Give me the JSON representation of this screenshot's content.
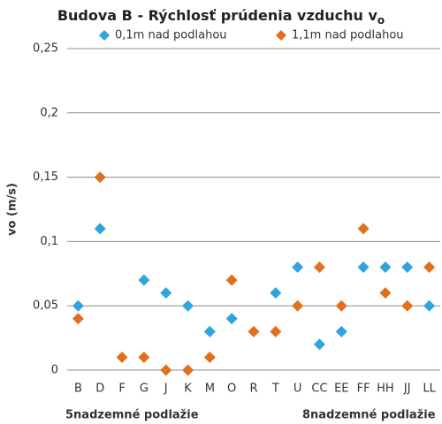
{
  "chart_data": {
    "type": "scatter",
    "title": "Budova B - Rýchlosť prúdenia vzduchu v",
    "title_subscript": "o",
    "y_label": "vo (m/s)",
    "group_labels": [
      "5nadzemné podlažie",
      "8nadzemné podlažie"
    ],
    "categories": [
      "B",
      "D",
      "F",
      "G",
      "J",
      "K",
      "M",
      "O",
      "R",
      "T",
      "U",
      "CC",
      "EE",
      "FF",
      "HH",
      "JJ",
      "LL"
    ],
    "series": [
      {
        "name": "0,1m nad podlahou",
        "color": "#2ea6dd",
        "values": [
          0.05,
          0.11,
          null,
          0.07,
          0.06,
          0.05,
          0.03,
          0.04,
          null,
          0.06,
          0.08,
          0.02,
          0.03,
          0.08,
          0.08,
          0.08,
          0.05
        ]
      },
      {
        "name": "1,1m  nad podlahou",
        "color": "#e0701e",
        "values": [
          0.04,
          0.15,
          0.01,
          0.01,
          0,
          0,
          0.01,
          0.07,
          0.03,
          0.03,
          0.05,
          0.08,
          0.05,
          0.11,
          0.06,
          0.05,
          0.08
        ]
      }
    ],
    "ylim": [
      0,
      0.25
    ],
    "yticks": [
      {
        "value": 0,
        "label": "0"
      },
      {
        "value": 0.05,
        "label": "0,05"
      },
      {
        "value": 0.1,
        "label": "0,1"
      },
      {
        "value": 0.15,
        "label": "0,15"
      },
      {
        "value": 0.2,
        "label": "0,2"
      },
      {
        "value": 0.25,
        "label": "0,25"
      }
    ],
    "grid": true,
    "legend": "top"
  }
}
